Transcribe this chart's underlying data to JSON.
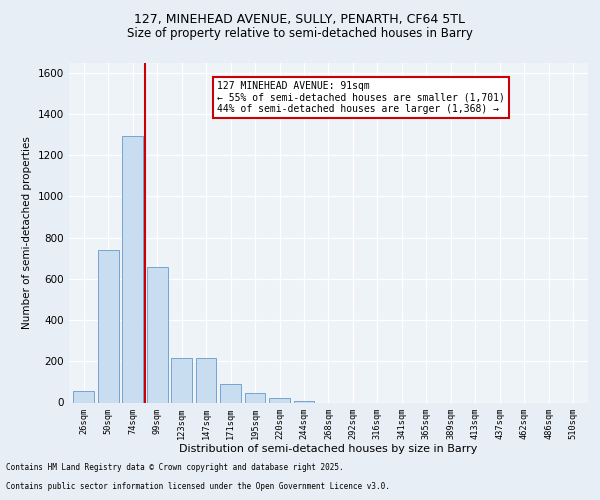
{
  "title_line1": "127, MINEHEAD AVENUE, SULLY, PENARTH, CF64 5TL",
  "title_line2": "Size of property relative to semi-detached houses in Barry",
  "xlabel": "Distribution of semi-detached houses by size in Barry",
  "ylabel": "Number of semi-detached properties",
  "categories": [
    "26sqm",
    "50sqm",
    "74sqm",
    "99sqm",
    "123sqm",
    "147sqm",
    "171sqm",
    "195sqm",
    "220sqm",
    "244sqm",
    "268sqm",
    "292sqm",
    "316sqm",
    "341sqm",
    "365sqm",
    "389sqm",
    "413sqm",
    "437sqm",
    "462sqm",
    "486sqm",
    "510sqm"
  ],
  "values": [
    55,
    740,
    1295,
    660,
    215,
    215,
    90,
    45,
    20,
    8,
    0,
    0,
    0,
    0,
    0,
    0,
    0,
    0,
    0,
    0,
    0
  ],
  "bar_color": "#c8ddf0",
  "bar_edge_color": "#6699cc",
  "vline_x": 2.5,
  "vline_color": "#cc0000",
  "annotation_title": "127 MINEHEAD AVENUE: 91sqm",
  "annotation_line1": "← 55% of semi-detached houses are smaller (1,701)",
  "annotation_line2": "44% of semi-detached houses are larger (1,368) →",
  "annotation_box_color": "#cc0000",
  "ylim": [
    0,
    1650
  ],
  "yticks": [
    0,
    200,
    400,
    600,
    800,
    1000,
    1200,
    1400,
    1600
  ],
  "footer_line1": "Contains HM Land Registry data © Crown copyright and database right 2025.",
  "footer_line2": "Contains public sector information licensed under the Open Government Licence v3.0.",
  "bg_color": "#e8eef5",
  "plot_bg_color": "#eef3f8"
}
